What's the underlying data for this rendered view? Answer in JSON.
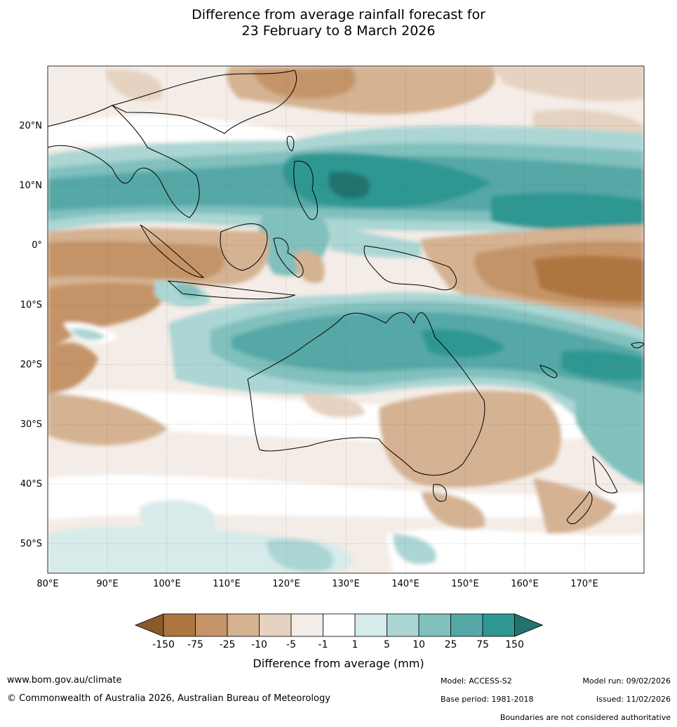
{
  "title": {
    "line1": "Difference from average rainfall forecast for",
    "line2": "23 February to 8 March 2026"
  },
  "map": {
    "lon_ticks": [
      "80°E",
      "90°E",
      "100°E",
      "110°E",
      "120°E",
      "130°E",
      "140°E",
      "150°E",
      "160°E",
      "170°E"
    ],
    "lat_ticks": [
      "20°N",
      "10°N",
      "0°",
      "10°S",
      "20°S",
      "30°S",
      "40°S",
      "50°S"
    ],
    "lon_range_deg": [
      80,
      180
    ],
    "lat_range_deg": [
      -55,
      30
    ]
  },
  "colorbar": {
    "labels": [
      "-150",
      "-75",
      "-25",
      "-10",
      "-5",
      "-1",
      "1",
      "5",
      "10",
      "25",
      "75",
      "150"
    ],
    "colors": [
      "#8b5a2b",
      "#ad7540",
      "#c49468",
      "#d4b292",
      "#e6d2c0",
      "#f4ece6",
      "#ffffff",
      "#d6ebea",
      "#abd6d4",
      "#80c0bd",
      "#55a8a6",
      "#2e9792",
      "#21736f"
    ],
    "title": "Difference from average (mm)"
  },
  "footer": {
    "url": "www.bom.gov.au/climate",
    "copyright": "© Commonwealth of Australia 2026, Australian Bureau of Meteorology",
    "model": "Model: ACCESS-S2",
    "base_period": "Base period: 1981-2018",
    "model_run": "Model run: 09/02/2026",
    "issued": "Issued: 11/02/2026",
    "disclaimer": "Boundaries are not considered authoritative"
  }
}
